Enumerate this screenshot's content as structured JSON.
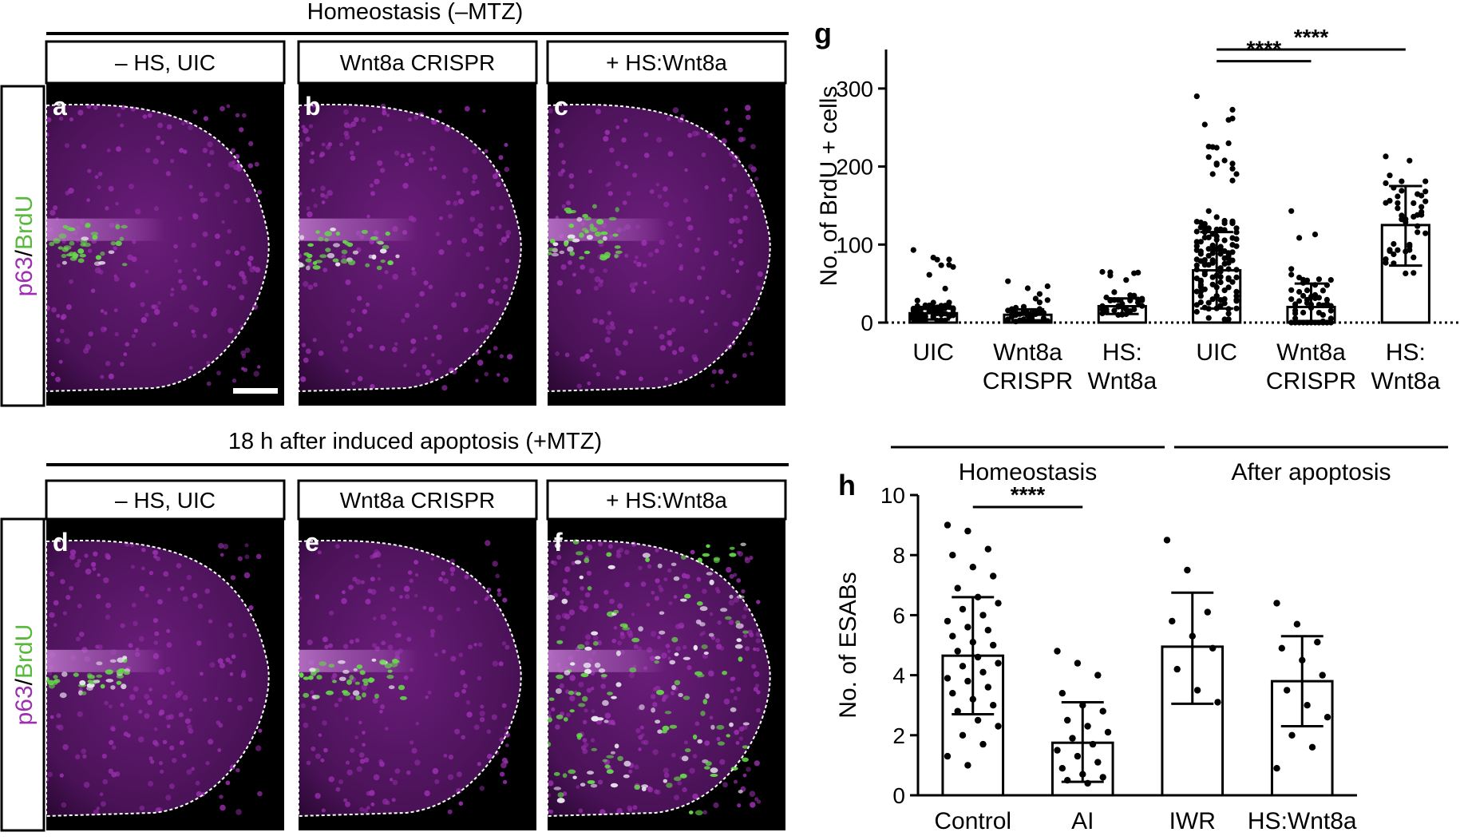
{
  "left": {
    "section_top": "Homeostasis (–MTZ)",
    "section_bottom": "18 h after induced apoptosis (+MTZ)",
    "column_labels": [
      "– HS, UIC",
      "Wnt8a CRISPR",
      "+ HS:Wnt8a"
    ],
    "panel_letters": [
      "a",
      "b",
      "c",
      "d",
      "e",
      "f"
    ],
    "row_label_parts": [
      "p63",
      "/",
      "BrdU"
    ],
    "colors": {
      "magenta": "#9b2fb0",
      "green": "#66d64a",
      "background": "#000000"
    }
  },
  "chart_data": [
    {
      "panel": "g",
      "type": "bar",
      "ylabel": "No. of BrdU + cells",
      "ylim": [
        0,
        350
      ],
      "yticks": [
        0,
        100,
        200,
        300
      ],
      "categories": [
        {
          "lines": [
            "UIC"
          ]
        },
        {
          "lines": [
            "Wnt8a",
            "CRISPR"
          ]
        },
        {
          "lines": [
            "HS:",
            "Wnt8a"
          ]
        },
        {
          "lines": [
            "UIC"
          ]
        },
        {
          "lines": [
            "Wnt8a",
            "CRISPR"
          ]
        },
        {
          "lines": [
            "HS:",
            "Wnt8a"
          ]
        }
      ],
      "values": [
        12,
        10,
        21,
        67,
        20,
        125
      ],
      "sd_lower": [
        4,
        3,
        11,
        18,
        2,
        73
      ],
      "sd_upper": [
        20,
        17,
        31,
        116,
        50,
        175
      ],
      "maxima": [
        93,
        53,
        65,
        290,
        143,
        213
      ],
      "group_labels": [
        {
          "label": "Homeostasis",
          "from": 0,
          "to": 2
        },
        {
          "label": "After apoptosis",
          "from": 3,
          "to": 5
        }
      ],
      "significance": [
        {
          "from": 3,
          "to": 4,
          "y": 335,
          "label": "****"
        },
        {
          "from": 3,
          "to": 5,
          "y": 350,
          "label": "****"
        }
      ],
      "dotted_zero_line": true
    },
    {
      "panel": "h",
      "type": "bar",
      "ylabel": "No. of ESABs",
      "ylim": [
        0,
        10
      ],
      "yticks": [
        0,
        2,
        4,
        6,
        8,
        10
      ],
      "categories": [
        {
          "lines": [
            "Control"
          ]
        },
        {
          "lines": [
            "AI"
          ]
        },
        {
          "lines": [
            "IWR"
          ]
        },
        {
          "lines": [
            "HS:Wnt8a"
          ]
        }
      ],
      "values": [
        4.65,
        1.75,
        4.95,
        3.8
      ],
      "sd_lower": [
        2.7,
        0.45,
        3.05,
        2.3
      ],
      "sd_upper": [
        6.6,
        3.1,
        6.75,
        5.3
      ],
      "points": [
        [
          9.0,
          8.8,
          8.2,
          8.0,
          7.6,
          7.3,
          6.9,
          6.6,
          6.4,
          6.2,
          6.0,
          5.8,
          5.6,
          5.5,
          5.3,
          5.1,
          5.0,
          4.8,
          4.6,
          4.4,
          4.3,
          4.1,
          3.9,
          3.8,
          3.6,
          3.4,
          3.2,
          3.0,
          2.8,
          2.5,
          2.3,
          2.0,
          1.7,
          1.3,
          1.0
        ],
        [
          4.8,
          4.4,
          4.0,
          3.4,
          3.0,
          2.8,
          2.5,
          2.3,
          2.1,
          1.9,
          1.7,
          1.5,
          1.3,
          1.1,
          0.9,
          0.7,
          0.6,
          0.5,
          0.4
        ],
        [
          8.5,
          7.5,
          6.1,
          5.8,
          5.3,
          4.9,
          4.2,
          3.5,
          3.1
        ],
        [
          6.4,
          5.7,
          5.1,
          4.9,
          4.5,
          4.0,
          3.5,
          3.0,
          2.6,
          2.0,
          1.6,
          0.9
        ]
      ],
      "significance": [
        {
          "from": 0,
          "to": 1,
          "y": 9.6,
          "label": "****"
        }
      ]
    }
  ]
}
